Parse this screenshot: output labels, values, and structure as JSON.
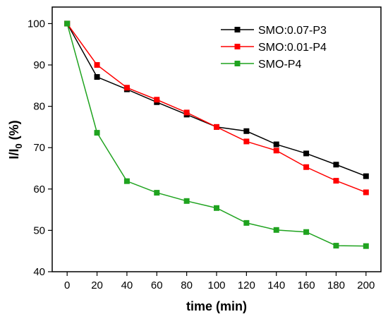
{
  "chart_data": {
    "type": "line",
    "xlabel": "time (min)",
    "ylabel": {
      "main": "I/I",
      "sub": "0",
      "suffix": " (%)"
    },
    "x": [
      0,
      20,
      40,
      60,
      80,
      100,
      120,
      140,
      160,
      180,
      200
    ],
    "xlim": [
      -10,
      210
    ],
    "ylim": [
      40,
      104
    ],
    "xticks": [
      0,
      20,
      40,
      60,
      80,
      100,
      120,
      140,
      160,
      180,
      200
    ],
    "yticks": [
      40,
      50,
      60,
      70,
      80,
      90,
      100
    ],
    "grid": false,
    "legend_position": "top-right",
    "marker": "square",
    "series": [
      {
        "name": "SMO:0.07-P3",
        "color": "#000000",
        "values": [
          100,
          87.1,
          84.1,
          81.0,
          78.0,
          75.0,
          74.0,
          70.8,
          68.6,
          65.9,
          63.1
        ]
      },
      {
        "name": "SMO:0.01-P4",
        "color": "#ff0000",
        "values": [
          100,
          90.0,
          84.5,
          81.6,
          78.5,
          75.0,
          71.5,
          69.3,
          65.3,
          62.0,
          59.2
        ]
      },
      {
        "name": "SMO-P4",
        "color": "#1fa31f",
        "values": [
          100,
          73.6,
          61.9,
          59.1,
          57.1,
          55.4,
          51.8,
          50.1,
          49.6,
          46.3,
          46.2
        ]
      }
    ]
  }
}
